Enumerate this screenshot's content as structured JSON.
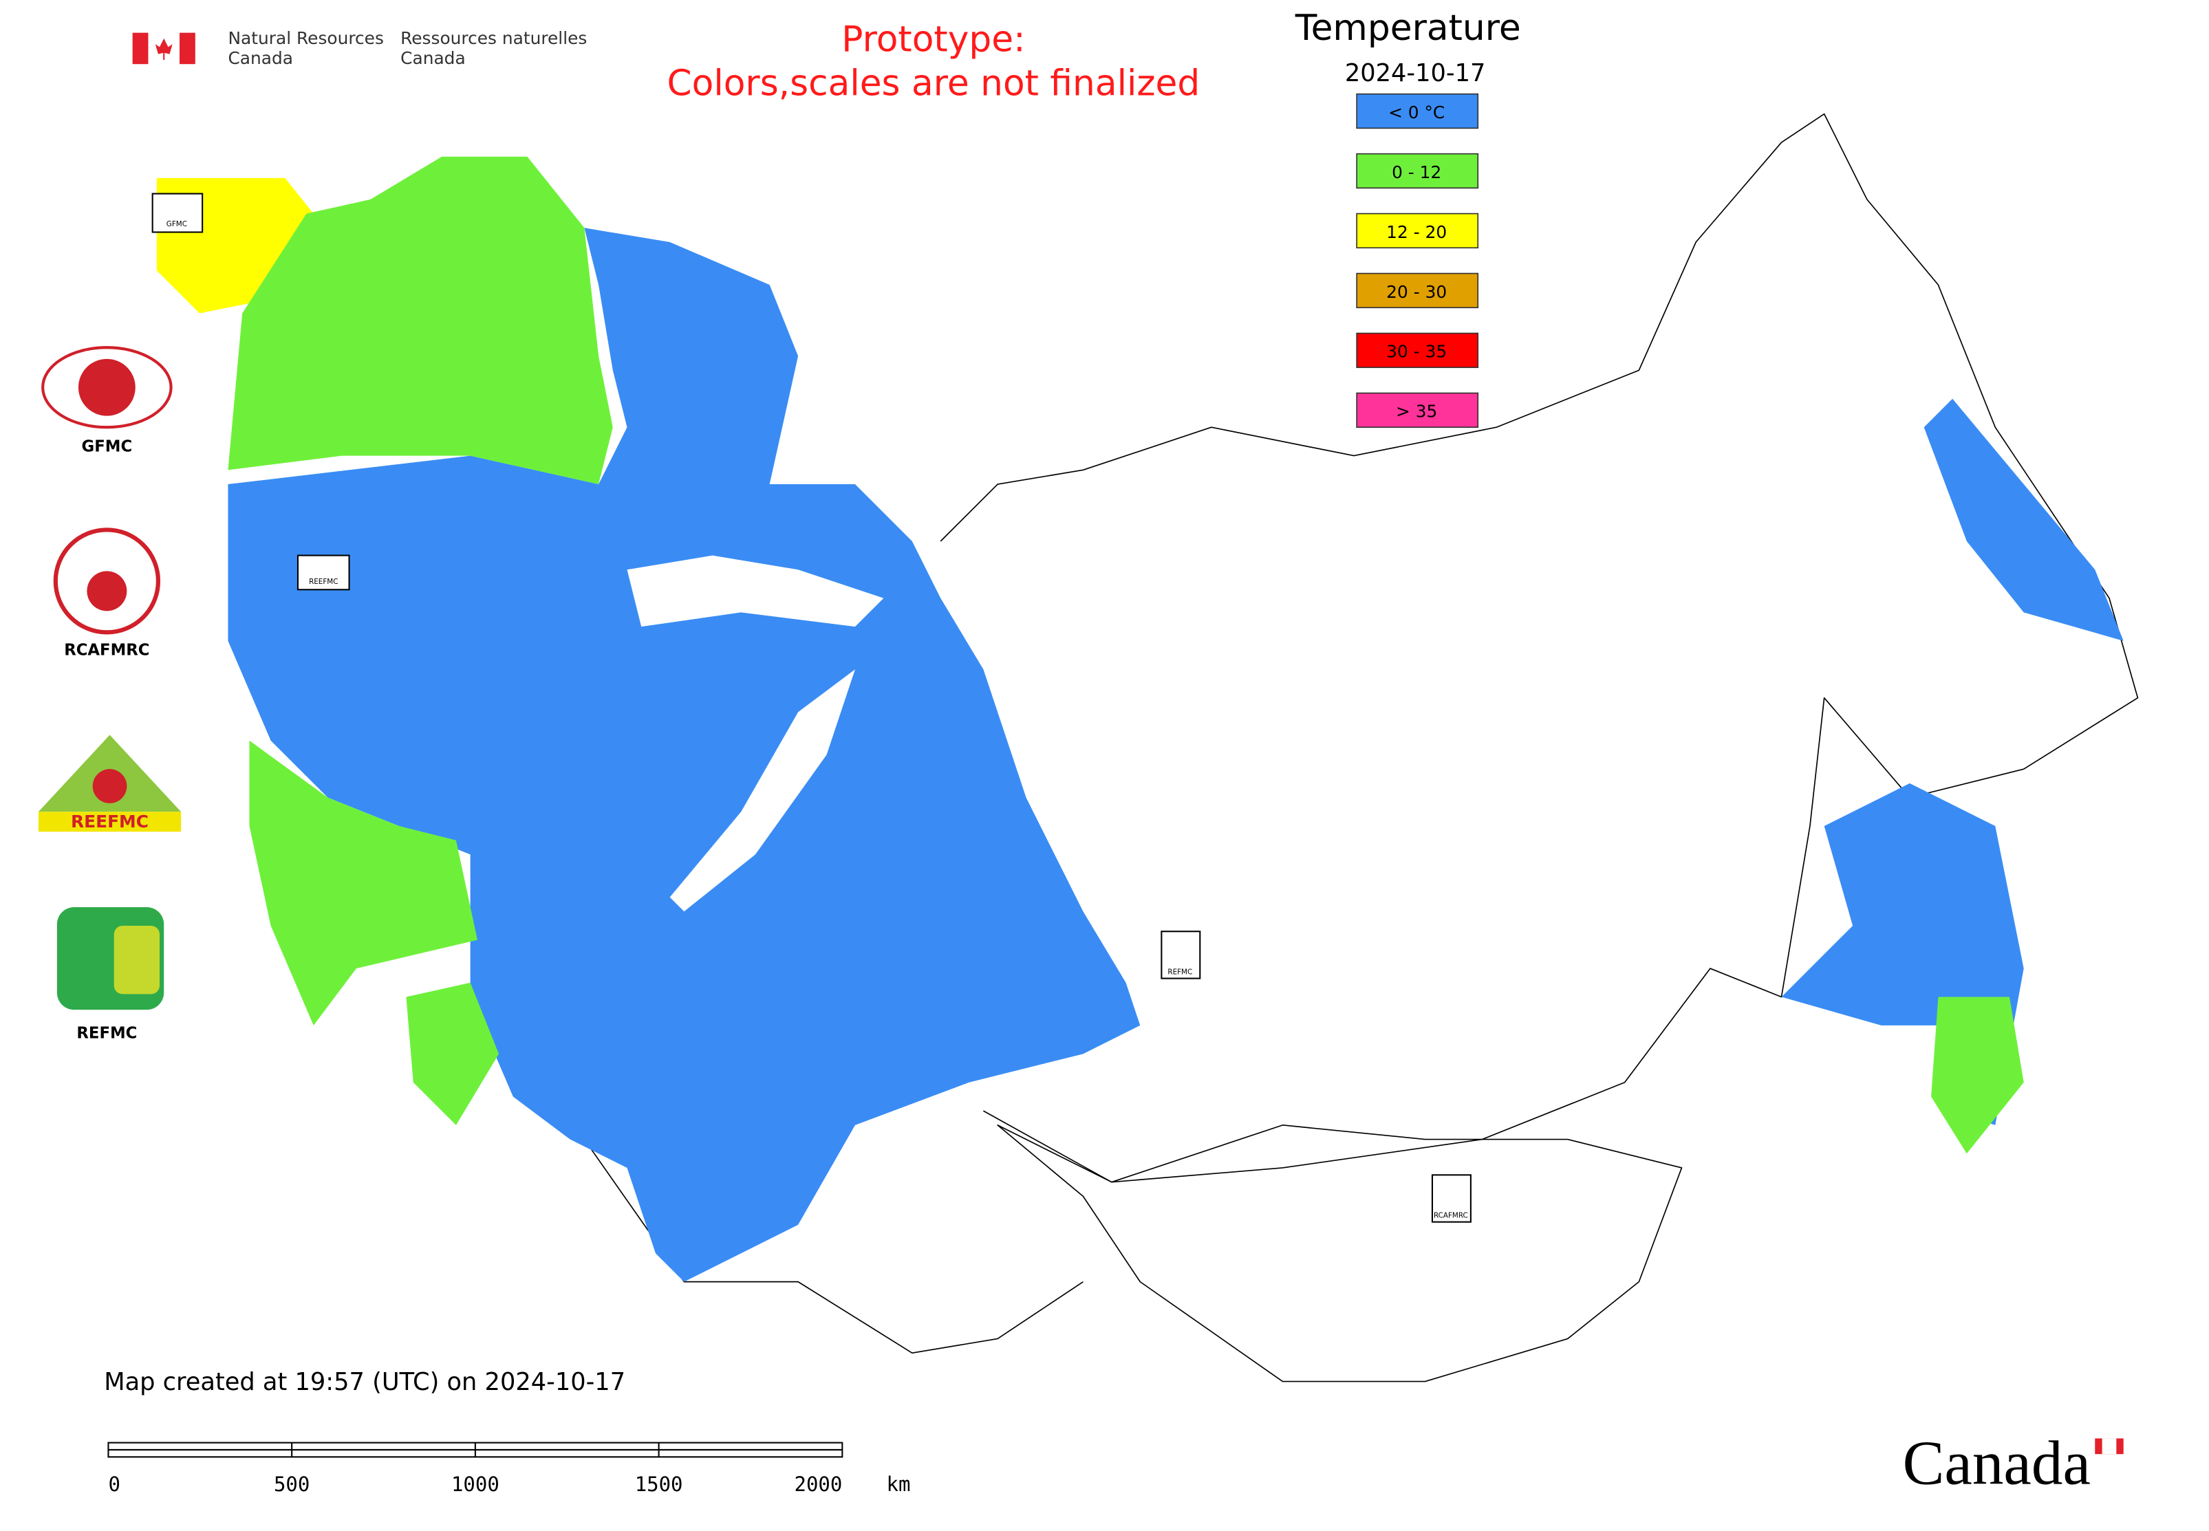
{
  "header": {
    "department_en": [
      "Natural Resources",
      "Canada"
    ],
    "department_fr": [
      "Ressources naturelles",
      "Canada"
    ]
  },
  "notice": [
    "Prototype:",
    "Colors,scales are not finalized"
  ],
  "legend": {
    "title": "Temperature",
    "date": "2024-10-17",
    "items": [
      {
        "label": "< 0 °C",
        "color": "#3a8cf4"
      },
      {
        "label": "0 - 12",
        "color": "#6ef03a"
      },
      {
        "label": "12 - 20",
        "color": "#ffff00"
      },
      {
        "label": "20 - 30",
        "color": "#e0a000"
      },
      {
        "label": "30 - 35",
        "color": "#ff0000"
      },
      {
        "label": "> 35",
        "color": "#ff3399"
      }
    ]
  },
  "logos": [
    {
      "label": "GFMC"
    },
    {
      "label": "RCAFMRC"
    },
    {
      "label": "REEFMC"
    },
    {
      "label": "REFMC"
    }
  ],
  "footer": {
    "created": "Map created at 19:57 (UTC) on 2024-10-17",
    "wordmark": "Canada"
  },
  "scale_bar": {
    "ticks": [
      "0",
      "500",
      "1000",
      "1500",
      "2000"
    ],
    "unit": "km"
  }
}
